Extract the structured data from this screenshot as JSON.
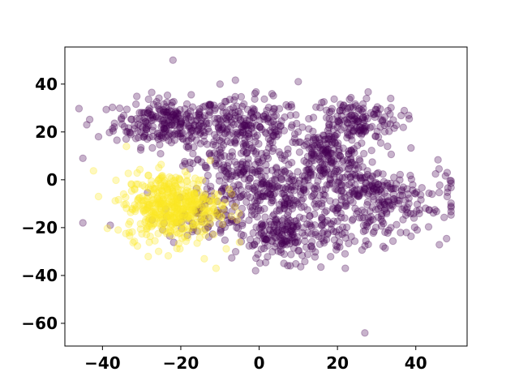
{
  "chart_data": {
    "type": "scatter",
    "title": "",
    "xlabel": "",
    "ylabel": "",
    "xlim": [
      -49.6,
      53.1
    ],
    "ylim": [
      -69.5,
      55.5
    ],
    "xticks": [
      -40,
      -20,
      0,
      20,
      40
    ],
    "yticks": [
      -60,
      -40,
      -20,
      0,
      20,
      40
    ],
    "xtick_labels": [
      "−40",
      "−20",
      "0",
      "20",
      "40"
    ],
    "ytick_labels": [
      "−60",
      "−40",
      "−20",
      "0",
      "20",
      "40"
    ],
    "grid": false,
    "legend": "none",
    "marker_alpha": 0.3,
    "series": [
      {
        "color": "#440154",
        "clusters": [
          {
            "cx": -23,
            "cy": 24,
            "sx": 7,
            "sy": 5,
            "n": 260
          },
          {
            "cx": -3,
            "cy": 22,
            "sx": 7,
            "sy": 6,
            "n": 200
          },
          {
            "cx": 17,
            "cy": 10,
            "sx": 5,
            "sy": 5,
            "n": 160
          },
          {
            "cx": 24,
            "cy": 25,
            "sx": 6,
            "sy": 5,
            "n": 160
          },
          {
            "cx": -6,
            "cy": 5,
            "sx": 6,
            "sy": 6,
            "n": 120
          },
          {
            "cx": 5,
            "cy": -6,
            "sx": 7,
            "sy": 6,
            "n": 170
          },
          {
            "cx": 8,
            "cy": -24,
            "sx": 7,
            "sy": 5,
            "n": 200
          },
          {
            "cx": 31,
            "cy": -10,
            "sx": 9,
            "sy": 8,
            "n": 230
          },
          {
            "cx": -13,
            "cy": -15,
            "sx": 6,
            "sy": 6,
            "n": 100
          },
          {
            "cx": 23,
            "cy": -2,
            "sx": 6,
            "sy": 5,
            "n": 90
          }
        ],
        "outliers": [
          [
            -45,
            -18
          ],
          [
            -22,
            50
          ],
          [
            27,
            -64
          ],
          [
            -44,
            23
          ],
          [
            -45,
            9
          ],
          [
            48,
            3
          ],
          [
            49,
            -11
          ],
          [
            22,
            -37
          ],
          [
            10,
            41
          ],
          [
            -10,
            40
          ],
          [
            -41,
            18
          ],
          [
            -38,
            -19
          ]
        ]
      },
      {
        "color": "#fde725",
        "clusters": [
          {
            "cx": -22,
            "cy": -11,
            "sx": 6,
            "sy": 7,
            "n": 500
          }
        ],
        "outliers": [
          [
            -41,
            -7
          ],
          [
            -11,
            -37
          ],
          [
            -36,
            -21
          ],
          [
            -14,
            -33
          ]
        ]
      }
    ]
  }
}
